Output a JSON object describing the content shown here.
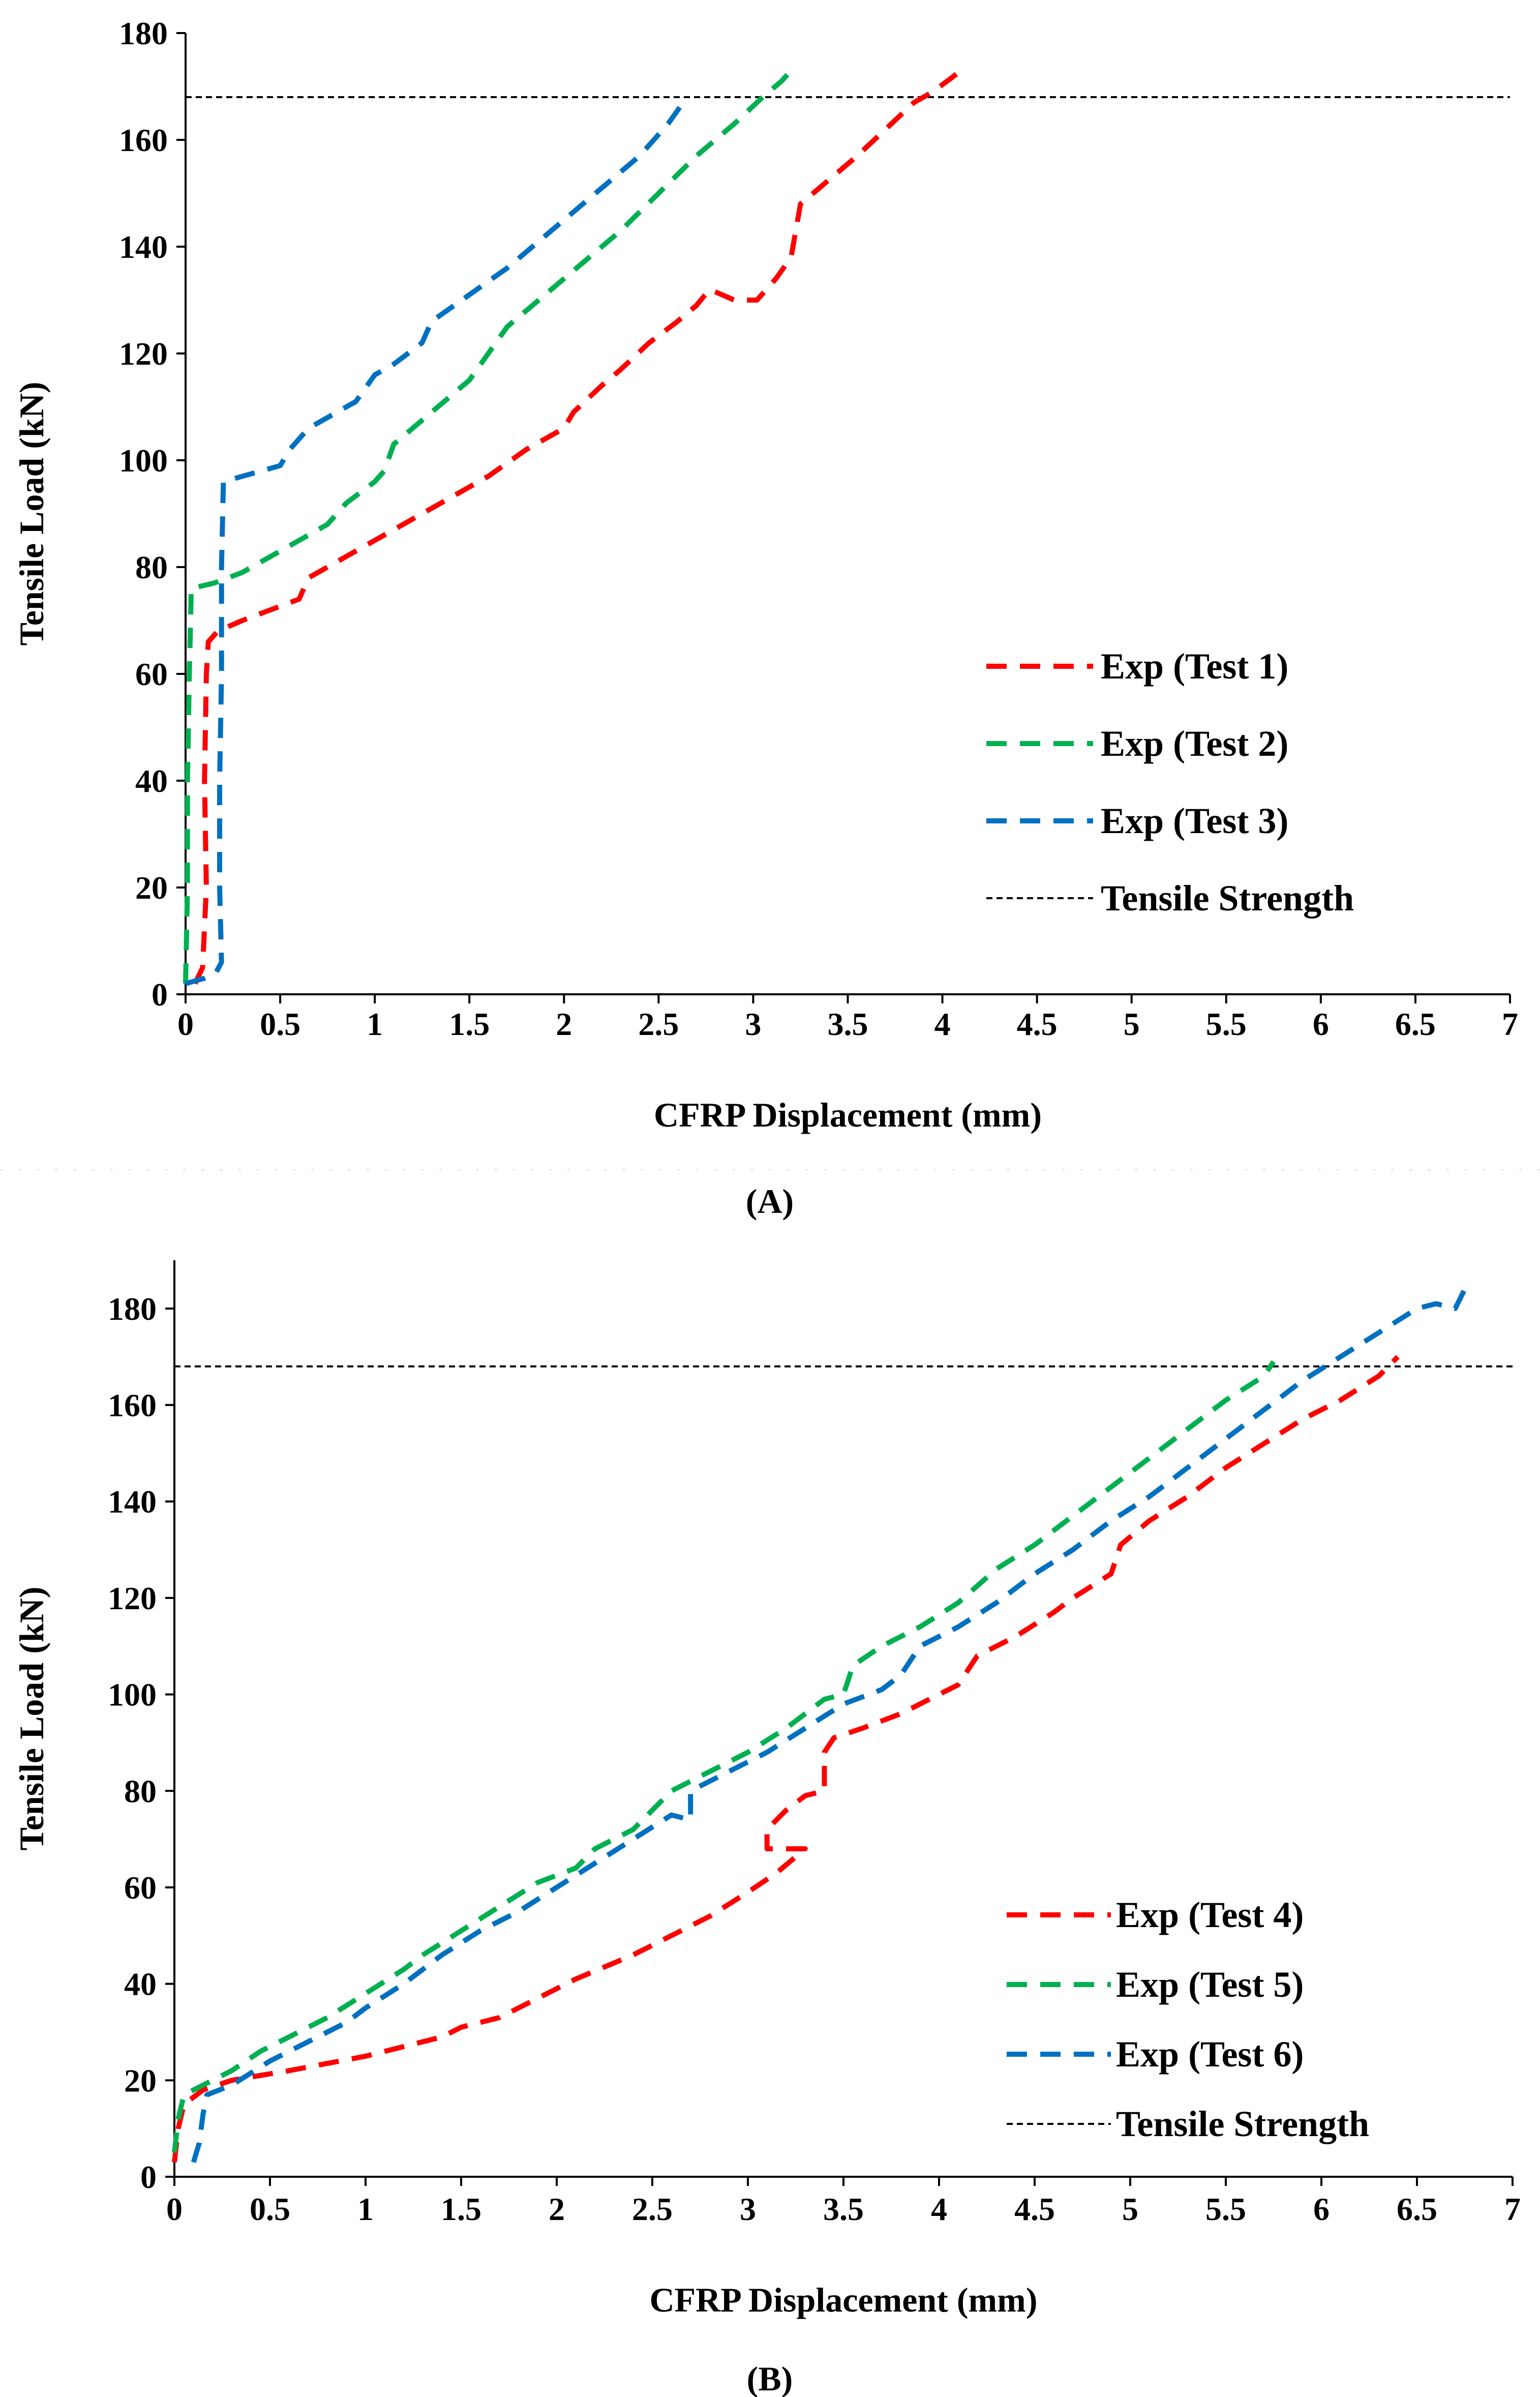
{
  "chart_data": [
    {
      "panel": "(A)",
      "type": "line",
      "xlabel": "CFRP Displacement (mm)",
      "ylabel": "Tensile Load (kN)",
      "xlim": [
        0,
        7
      ],
      "ylim": [
        0,
        180
      ],
      "x_ticks": [
        "0",
        "0.5",
        "1",
        "1.5",
        "2",
        "2.5",
        "3",
        "3.5",
        "4",
        "4.5",
        "5",
        "5.5",
        "6",
        "6.5",
        "7"
      ],
      "y_ticks": [
        "0",
        "20",
        "40",
        "60",
        "80",
        "100",
        "120",
        "140",
        "160",
        "180"
      ],
      "legend_position": "center-right",
      "reference_line": {
        "name": "Tensile Strength",
        "y": 168
      },
      "series": [
        {
          "name": "Exp (Test 1)",
          "color": "#ff0000",
          "points": [
            [
              0.05,
              2
            ],
            [
              0.09,
              5
            ],
            [
              0.11,
              20
            ],
            [
              0.1,
              40
            ],
            [
              0.11,
              60
            ],
            [
              0.12,
              66
            ],
            [
              0.17,
              68
            ],
            [
              0.3,
              70
            ],
            [
              0.45,
              72
            ],
            [
              0.6,
              74
            ],
            [
              0.65,
              78
            ],
            [
              0.9,
              83
            ],
            [
              1.2,
              89
            ],
            [
              1.5,
              95
            ],
            [
              1.6,
              97
            ],
            [
              1.8,
              102
            ],
            [
              2,
              106
            ],
            [
              2.05,
              109
            ],
            [
              2.2,
              114
            ],
            [
              2.3,
              117
            ],
            [
              2.45,
              122
            ],
            [
              2.6,
              126
            ],
            [
              2.7,
              129
            ],
            [
              2.77,
              132
            ],
            [
              2.9,
              130
            ],
            [
              3.02,
              130
            ],
            [
              3.12,
              134
            ],
            [
              3.2,
              138
            ],
            [
              3.25,
              148
            ],
            [
              3.35,
              151
            ],
            [
              3.55,
              157
            ],
            [
              3.7,
              162
            ],
            [
              3.85,
              167
            ],
            [
              3.95,
              169
            ],
            [
              4.1,
              173
            ]
          ]
        },
        {
          "name": "Exp (Test 2)",
          "color": "#00b050",
          "points": [
            [
              0,
              2
            ],
            [
              0.01,
              20
            ],
            [
              0.01,
              40
            ],
            [
              0.02,
              60
            ],
            [
              0.03,
              76
            ],
            [
              0.15,
              77
            ],
            [
              0.3,
              79
            ],
            [
              0.45,
              82
            ],
            [
              0.6,
              85
            ],
            [
              0.75,
              88
            ],
            [
              0.85,
              92
            ],
            [
              1,
              96
            ],
            [
              1.05,
              98
            ],
            [
              1.1,
              103
            ],
            [
              1.3,
              109
            ],
            [
              1.5,
              115
            ],
            [
              1.58,
              119
            ],
            [
              1.7,
              125
            ],
            [
              1.9,
              131
            ],
            [
              2.1,
              137
            ],
            [
              2.3,
              143
            ],
            [
              2.5,
              150
            ],
            [
              2.7,
              157
            ],
            [
              2.9,
              163
            ],
            [
              3.05,
              168
            ],
            [
              3.15,
              171
            ],
            [
              3.2,
              173
            ]
          ]
        },
        {
          "name": "Exp (Test 3)",
          "color": "#0070c0",
          "points": [
            [
              0,
              2
            ],
            [
              0.1,
              3
            ],
            [
              0.16,
              4
            ],
            [
              0.19,
              6
            ],
            [
              0.18,
              20
            ],
            [
              0.18,
              40
            ],
            [
              0.19,
              60
            ],
            [
              0.19,
              80
            ],
            [
              0.2,
              96
            ],
            [
              0.3,
              97
            ],
            [
              0.5,
              99
            ],
            [
              0.55,
              102
            ],
            [
              0.65,
              106
            ],
            [
              0.8,
              109
            ],
            [
              0.9,
              111
            ],
            [
              1,
              116
            ],
            [
              1.1,
              118
            ],
            [
              1.25,
              122
            ],
            [
              1.3,
              126
            ],
            [
              1.5,
              131
            ],
            [
              1.7,
              136
            ],
            [
              1.9,
              142
            ],
            [
              2,
              145
            ],
            [
              2.2,
              151
            ],
            [
              2.4,
              157
            ],
            [
              2.55,
              163
            ],
            [
              2.65,
              168
            ]
          ]
        }
      ]
    },
    {
      "panel": "(B)",
      "type": "line",
      "xlabel": "CFRP Displacement (mm)",
      "ylabel": "Tensile Load (kN)",
      "xlim": [
        0,
        7
      ],
      "ylim": [
        0,
        190
      ],
      "x_ticks": [
        "0",
        "0.5",
        "1",
        "1.5",
        "2",
        "2.5",
        "3",
        "3.5",
        "4",
        "4.5",
        "5",
        "5.5",
        "6",
        "6.5",
        "7"
      ],
      "y_ticks": [
        "0",
        "20",
        "40",
        "60",
        "80",
        "100",
        "120",
        "140",
        "160",
        "180"
      ],
      "legend_position": "bottom-right",
      "reference_line": {
        "name": "Tensile Strength",
        "y": 168
      },
      "series": [
        {
          "name": "Exp (Test 4)",
          "color": "#ff0000",
          "points": [
            [
              0,
              3
            ],
            [
              0.02,
              10
            ],
            [
              0.05,
              15
            ],
            [
              0.15,
              18
            ],
            [
              0.3,
              20
            ],
            [
              0.6,
              22
            ],
            [
              1,
              25
            ],
            [
              1.4,
              29
            ],
            [
              1.5,
              31
            ],
            [
              1.7,
              33
            ],
            [
              1.9,
              37
            ],
            [
              2.1,
              41
            ],
            [
              2.4,
              46
            ],
            [
              2.6,
              50
            ],
            [
              2.8,
              54
            ],
            [
              3,
              59
            ],
            [
              3.15,
              63
            ],
            [
              3.3,
              68
            ],
            [
              3.1,
              68
            ],
            [
              3.1,
              72
            ],
            [
              3.2,
              76
            ],
            [
              3.3,
              79
            ],
            [
              3.4,
              80
            ],
            [
              3.4,
              88
            ],
            [
              3.45,
              91
            ],
            [
              3.6,
              93
            ],
            [
              3.8,
              96
            ],
            [
              4,
              100
            ],
            [
              4.1,
              102
            ],
            [
              4.2,
              108
            ],
            [
              4.4,
              112
            ],
            [
              4.6,
              117
            ],
            [
              4.7,
              120
            ],
            [
              4.9,
              125
            ],
            [
              4.95,
              131
            ],
            [
              5.1,
              136
            ],
            [
              5.3,
              141
            ],
            [
              5.5,
              147
            ],
            [
              5.7,
              152
            ],
            [
              5.9,
              157
            ],
            [
              6.1,
              161
            ],
            [
              6.3,
              166
            ],
            [
              6.4,
              170
            ]
          ]
        },
        {
          "name": "Exp (Test 5)",
          "color": "#00b050",
          "points": [
            [
              0,
              5
            ],
            [
              0.02,
              12
            ],
            [
              0.05,
              17
            ],
            [
              0.15,
              19
            ],
            [
              0.3,
              22
            ],
            [
              0.45,
              26
            ],
            [
              0.6,
              29
            ],
            [
              0.8,
              33
            ],
            [
              1,
              38
            ],
            [
              1.2,
              43
            ],
            [
              1.3,
              46
            ],
            [
              1.5,
              51
            ],
            [
              1.7,
              56
            ],
            [
              1.9,
              61
            ],
            [
              2.1,
              64
            ],
            [
              2.2,
              68
            ],
            [
              2.4,
              72
            ],
            [
              2.5,
              76
            ],
            [
              2.6,
              80
            ],
            [
              2.8,
              84
            ],
            [
              3,
              88
            ],
            [
              3.2,
              93
            ],
            [
              3.3,
              96
            ],
            [
              3.4,
              99
            ],
            [
              3.5,
              100
            ],
            [
              3.55,
              106
            ],
            [
              3.7,
              110
            ],
            [
              3.9,
              114
            ],
            [
              4.1,
              119
            ],
            [
              4.3,
              126
            ],
            [
              4.5,
              131
            ],
            [
              4.7,
              137
            ],
            [
              4.9,
              143
            ],
            [
              5.1,
              149
            ],
            [
              5.3,
              155
            ],
            [
              5.5,
              161
            ],
            [
              5.7,
              166
            ],
            [
              5.75,
              169
            ]
          ]
        },
        {
          "name": "Exp (Test 6)",
          "color": "#0070c0",
          "points": [
            [
              0.1,
              3
            ],
            [
              0.13,
              7
            ],
            [
              0.15,
              13
            ],
            [
              0.17,
              17
            ],
            [
              0.3,
              19
            ],
            [
              0.5,
              24
            ],
            [
              0.7,
              28
            ],
            [
              0.9,
              32
            ],
            [
              1,
              35
            ],
            [
              1.2,
              40
            ],
            [
              1.4,
              46
            ],
            [
              1.6,
              51
            ],
            [
              1.8,
              55
            ],
            [
              2,
              60
            ],
            [
              2.2,
              65
            ],
            [
              2.4,
              70
            ],
            [
              2.6,
              75
            ],
            [
              2.7,
              74
            ],
            [
              2.7,
              80
            ],
            [
              2.9,
              84
            ],
            [
              3.1,
              88
            ],
            [
              3.3,
              93
            ],
            [
              3.5,
              98
            ],
            [
              3.7,
              101
            ],
            [
              3.8,
              104
            ],
            [
              3.9,
              110
            ],
            [
              4.1,
              114
            ],
            [
              4.3,
              119
            ],
            [
              4.5,
              125
            ],
            [
              4.7,
              130
            ],
            [
              4.9,
              136
            ],
            [
              5.1,
              141
            ],
            [
              5.3,
              147
            ],
            [
              5.5,
              153
            ],
            [
              5.7,
              159
            ],
            [
              5.9,
              165
            ],
            [
              6.1,
              170
            ],
            [
              6.3,
              175
            ],
            [
              6.5,
              180
            ],
            [
              6.6,
              181
            ],
            [
              6.7,
              180
            ],
            [
              6.75,
              184
            ]
          ]
        }
      ]
    }
  ]
}
